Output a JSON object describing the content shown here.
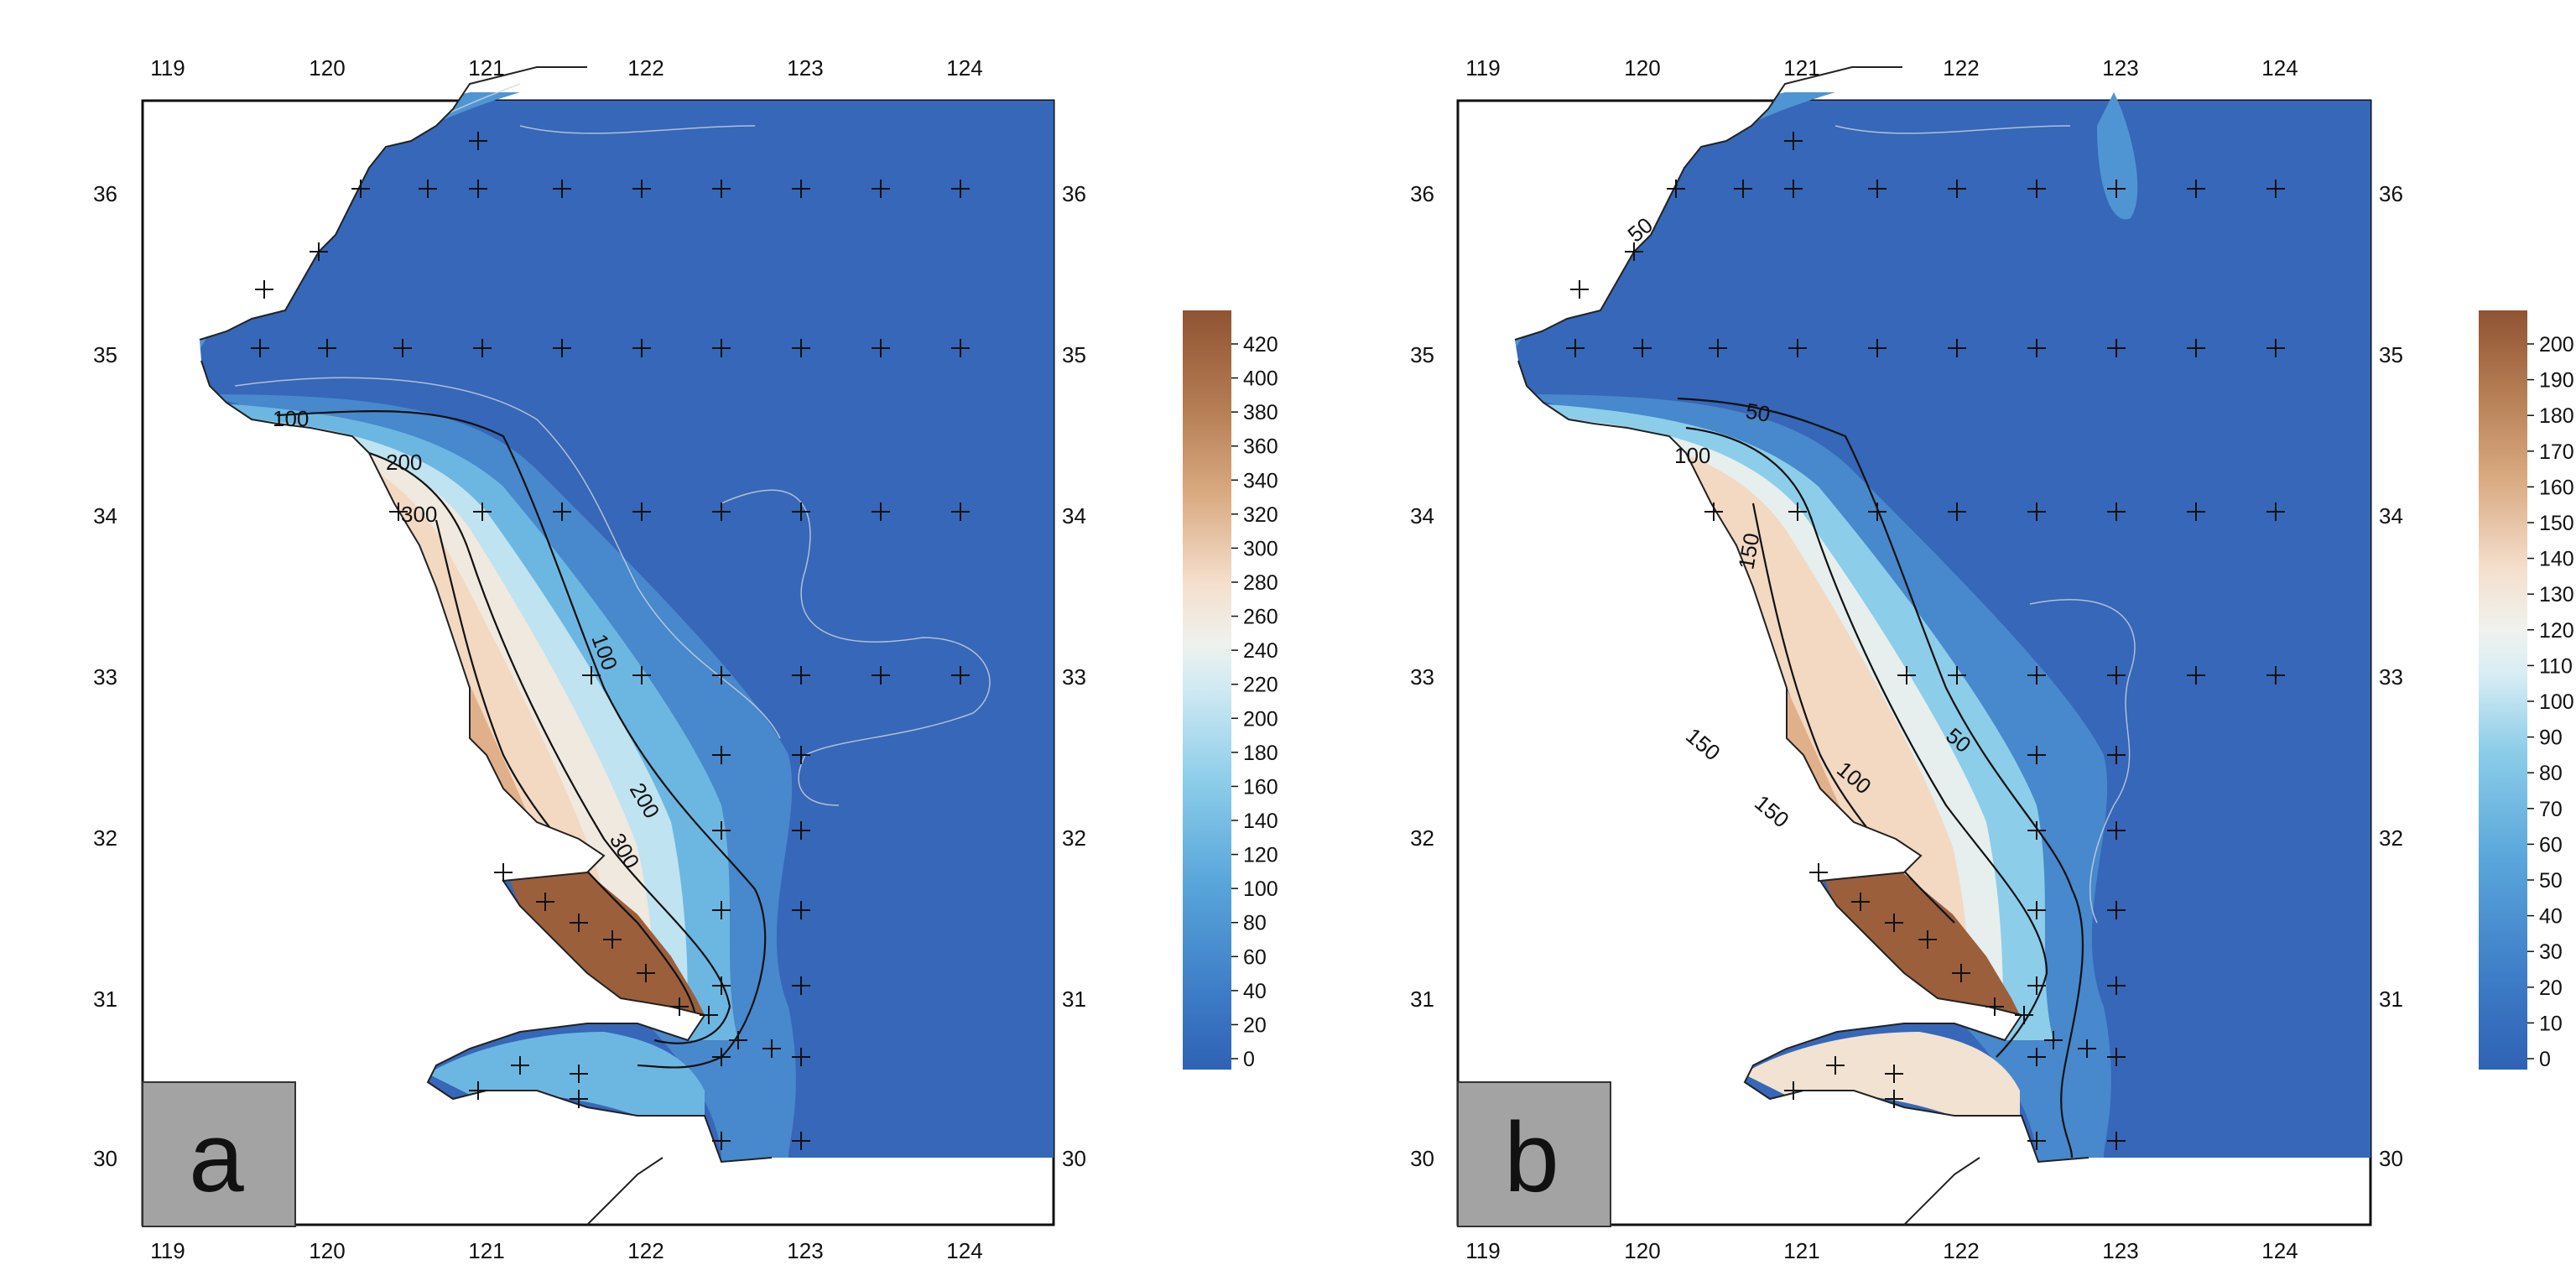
{
  "colors": {
    "ocean": "#3667b8",
    "deep_land": "#9b5f3c",
    "tick_text": "#111111",
    "label_box": "#a3a3a3"
  },
  "axis_ticks": {
    "lon": [
      "119",
      "120",
      "121",
      "122",
      "123",
      "124"
    ],
    "lat": [
      "36",
      "35",
      "34",
      "33",
      "32",
      "31",
      "30"
    ]
  },
  "panels": [
    {
      "label": "a",
      "colorbar_ticks": [
        "420",
        "400",
        "380",
        "360",
        "340",
        "320",
        "300",
        "280",
        "260",
        "240",
        "220",
        "200",
        "180",
        "160",
        "140",
        "120",
        "100",
        "80",
        "60",
        "40",
        "20",
        "0"
      ],
      "contour_labels": [
        "100",
        "200",
        "300",
        "100",
        "200",
        "300"
      ]
    },
    {
      "label": "b",
      "colorbar_ticks": [
        "200",
        "190",
        "180",
        "170",
        "160",
        "150",
        "140",
        "130",
        "120",
        "110",
        "100",
        "90",
        "80",
        "70",
        "60",
        "50",
        "40",
        "30",
        "20",
        "10",
        "0"
      ],
      "contour_labels": [
        "50",
        "50",
        "100",
        "150",
        "150",
        "150",
        "100",
        "50"
      ]
    }
  ]
}
